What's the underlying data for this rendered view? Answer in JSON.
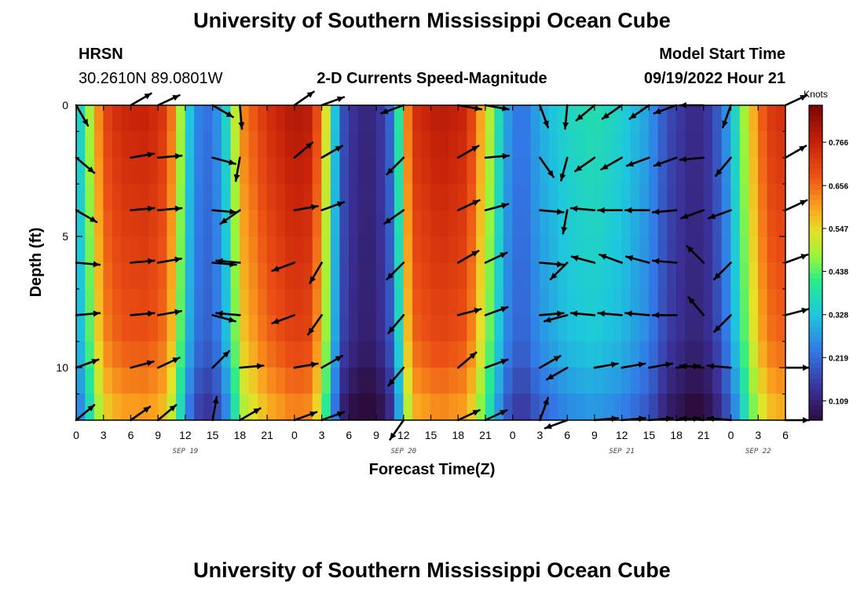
{
  "header": {
    "title": "University of Southern Mississippi Ocean Cube",
    "station": "HRSN",
    "coords": "30.2610N  89.0801W",
    "subtitle": "2-D Currents Speed-Magnitude",
    "model_label": "Model Start Time",
    "model_time": "09/19/2022 Hour 21",
    "footer_title": "University of Southern Mississippi Ocean Cube"
  },
  "chart_data": {
    "type": "heatmap",
    "title": "2-D Currents Speed-Magnitude",
    "xlabel": "Forecast Time(Z)",
    "ylabel": "Depth (ft)",
    "x_start_hour": 0,
    "x_end_hour": 78,
    "x_ticks": [
      "0",
      "3",
      "6",
      "9",
      "12",
      "15",
      "18",
      "21",
      "0",
      "3",
      "6",
      "9",
      "12",
      "15",
      "18",
      "21",
      "0",
      "3",
      "6",
      "9",
      "12",
      "15",
      "18",
      "21",
      "0",
      "3",
      "6"
    ],
    "date_labels": [
      {
        "label": "SEP 19",
        "hour": 12
      },
      {
        "label": "SEP 20",
        "hour": 36
      },
      {
        "label": "SEP 21",
        "hour": 60
      },
      {
        "label": "SEP 22",
        "hour": 75
      }
    ],
    "y_ticks": [
      0,
      5,
      10
    ],
    "ylim": [
      0,
      12
    ],
    "depths": [
      0.5,
      1.5,
      2.5,
      3.5,
      4.5,
      5.5,
      6.5,
      7.5,
      8.5,
      9.5,
      10.5,
      11.5
    ],
    "colorbar": {
      "unit": "Knots",
      "ticks": [
        0.109,
        0.219,
        0.328,
        0.438,
        0.547,
        0.656,
        0.766
      ],
      "range": [
        0.06,
        0.86
      ]
    },
    "speed_profile": [
      {
        "hour": 0,
        "speed": 0.3
      },
      {
        "hour": 1,
        "speed": 0.42
      },
      {
        "hour": 2,
        "speed": 0.56
      },
      {
        "hour": 3,
        "speed": 0.7
      },
      {
        "hour": 5,
        "speed": 0.76
      },
      {
        "hour": 8,
        "speed": 0.77
      },
      {
        "hour": 10,
        "speed": 0.72
      },
      {
        "hour": 11,
        "speed": 0.58
      },
      {
        "hour": 12,
        "speed": 0.4
      },
      {
        "hour": 13,
        "speed": 0.26
      },
      {
        "hour": 15,
        "speed": 0.22
      },
      {
        "hour": 17,
        "speed": 0.4
      },
      {
        "hour": 18,
        "speed": 0.62
      },
      {
        "hour": 21,
        "speed": 0.74
      },
      {
        "hour": 24,
        "speed": 0.8
      },
      {
        "hour": 26,
        "speed": 0.78
      },
      {
        "hour": 28,
        "speed": 0.45
      },
      {
        "hour": 29,
        "speed": 0.2
      },
      {
        "hour": 31,
        "speed": 0.12
      },
      {
        "hour": 33,
        "speed": 0.12
      },
      {
        "hour": 35,
        "speed": 0.24
      },
      {
        "hour": 36,
        "speed": 0.55
      },
      {
        "hour": 37,
        "speed": 0.74
      },
      {
        "hour": 40,
        "speed": 0.79
      },
      {
        "hour": 43,
        "speed": 0.76
      },
      {
        "hour": 46,
        "speed": 0.45
      },
      {
        "hour": 47,
        "speed": 0.3
      },
      {
        "hour": 49,
        "speed": 0.22
      },
      {
        "hour": 51,
        "speed": 0.3
      },
      {
        "hour": 54,
        "speed": 0.36
      },
      {
        "hour": 57,
        "speed": 0.38
      },
      {
        "hour": 60,
        "speed": 0.35
      },
      {
        "hour": 63,
        "speed": 0.28
      },
      {
        "hour": 65,
        "speed": 0.18
      },
      {
        "hour": 68,
        "speed": 0.12
      },
      {
        "hour": 70,
        "speed": 0.16
      },
      {
        "hour": 72,
        "speed": 0.3
      },
      {
        "hour": 74,
        "speed": 0.55
      },
      {
        "hour": 76,
        "speed": 0.72
      },
      {
        "hour": 78,
        "speed": 0.75
      }
    ],
    "arrows": {
      "depths": [
        0,
        2,
        4,
        6,
        8,
        10,
        12
      ],
      "hours": [
        0,
        6,
        9,
        15,
        18,
        24,
        27,
        36,
        42,
        45,
        51,
        54,
        57,
        60,
        63,
        66,
        69,
        72,
        78
      ],
      "directions_deg": [
        [
          300,
          30,
          25,
          330,
          275,
          35,
          20,
          200,
          350,
          350,
          290,
          265,
          220,
          215,
          215,
          200,
          180,
          250,
          25
        ],
        [
          320,
          10,
          5,
          345,
          260,
          40,
          30,
          225,
          30,
          5,
          305,
          255,
          215,
          210,
          200,
          200,
          185,
          230,
          30
        ],
        [
          330,
          5,
          5,
          355,
          215,
          10,
          20,
          215,
          25,
          15,
          355,
          260,
          175,
          180,
          180,
          185,
          200,
          200,
          25
        ],
        [
          355,
          5,
          10,
          355,
          175,
          200,
          240,
          225,
          30,
          25,
          355,
          225,
          165,
          160,
          165,
          175,
          135,
          225,
          20
        ],
        [
          5,
          5,
          10,
          345,
          175,
          200,
          235,
          230,
          15,
          20,
          5,
          195,
          175,
          175,
          175,
          180,
          130,
          225,
          15
        ],
        [
          20,
          15,
          25,
          45,
          5,
          10,
          30,
          230,
          40,
          20,
          30,
          210,
          10,
          10,
          10,
          5,
          175,
          175,
          0
        ],
        [
          40,
          35,
          40,
          80,
          30,
          20,
          20,
          235,
          25,
          25,
          70,
          200,
          5,
          5,
          5,
          5,
          175,
          175,
          0
        ]
      ]
    }
  }
}
